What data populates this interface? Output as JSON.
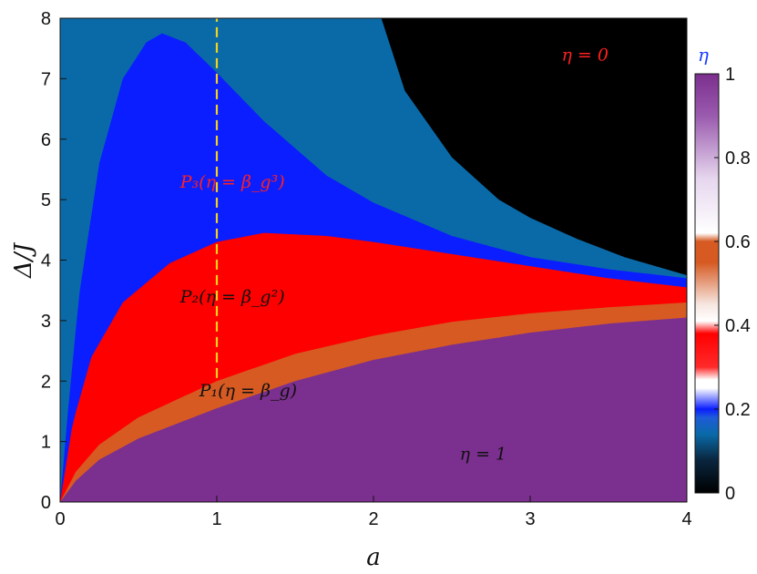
{
  "chart_data": {
    "type": "heatmap",
    "xlabel": "a",
    "ylabel": "Δ/J",
    "xlim": [
      0,
      4
    ],
    "ylim": [
      0,
      8
    ],
    "xticks": [
      "0",
      "1",
      "2",
      "3",
      "4"
    ],
    "yticks": [
      "0",
      "1",
      "2",
      "3",
      "4",
      "5",
      "6",
      "7",
      "8"
    ],
    "colorbar": {
      "label": "η",
      "label_color": "#1a3cff",
      "range": [
        0,
        1
      ],
      "ticks": [
        "0",
        "0.2",
        "0.4",
        "0.6",
        "0.8",
        "1"
      ]
    },
    "regions": [
      {
        "label": "η = 1",
        "eta": 1,
        "color": "#7b2f8e",
        "label_color": "#111111",
        "label_at": [
          2.7,
          0.7
        ]
      },
      {
        "label": "P₁(η = β_g)",
        "eta": 0.55,
        "color": "#d65a22",
        "label_color": "#111111",
        "label_at": [
          1.2,
          1.75
        ]
      },
      {
        "label": "P₂(η = β_g²)",
        "eta": 0.35,
        "color": "#ff0000",
        "label_color": "#111111",
        "label_at": [
          1.1,
          3.3
        ]
      },
      {
        "label": "P₃(η = β_g³)",
        "eta": 0.22,
        "color": "#0a1eff",
        "label_color": "#ff2020",
        "label_at": [
          1.1,
          5.2
        ]
      },
      {
        "label": "η = 0",
        "eta": 0,
        "color": "#000000",
        "label_color": "#ff2020",
        "label_at": [
          3.35,
          7.3
        ]
      }
    ],
    "boundaries": {
      "purple_top": {
        "a": [
          0,
          0.1,
          0.25,
          0.5,
          1,
          1.5,
          2,
          2.5,
          3,
          3.5,
          4
        ],
        "delta": [
          0,
          0.35,
          0.7,
          1.05,
          1.55,
          2.0,
          2.35,
          2.6,
          2.8,
          2.95,
          3.05
        ]
      },
      "orange_top": {
        "a": [
          0,
          0.1,
          0.25,
          0.5,
          1,
          1.5,
          2,
          2.5,
          3,
          3.5,
          4
        ],
        "delta": [
          0,
          0.5,
          0.95,
          1.4,
          2.0,
          2.45,
          2.75,
          2.98,
          3.12,
          3.22,
          3.3
        ]
      },
      "red_top": {
        "a": [
          0,
          0.08,
          0.2,
          0.4,
          0.7,
          1,
          1.3,
          1.7,
          2,
          2.5,
          3,
          3.5,
          4
        ],
        "delta": [
          0,
          1.3,
          2.4,
          3.3,
          3.95,
          4.3,
          4.45,
          4.4,
          4.3,
          4.1,
          3.9,
          3.7,
          3.55
        ]
      },
      "blue_top": {
        "a": [
          0,
          0.05,
          0.12,
          0.25,
          0.4,
          0.55,
          0.65,
          0.8,
          1,
          1.3,
          1.7,
          2,
          2.5,
          3,
          3.5,
          4
        ],
        "delta": [
          0,
          1.5,
          3.4,
          5.6,
          7.0,
          7.6,
          7.75,
          7.6,
          7.1,
          6.3,
          5.4,
          4.95,
          4.4,
          4.05,
          3.85,
          3.7
        ]
      },
      "black_lower": {
        "a": [
          2.05,
          2.2,
          2.5,
          2.8,
          3.0,
          3.3,
          3.6,
          4
        ],
        "delta": [
          8,
          6.8,
          5.7,
          5.0,
          4.7,
          4.35,
          4.05,
          3.75
        ]
      }
    },
    "reference_line": {
      "a": 1,
      "style": "dashed",
      "color": "#f2d21a"
    }
  }
}
